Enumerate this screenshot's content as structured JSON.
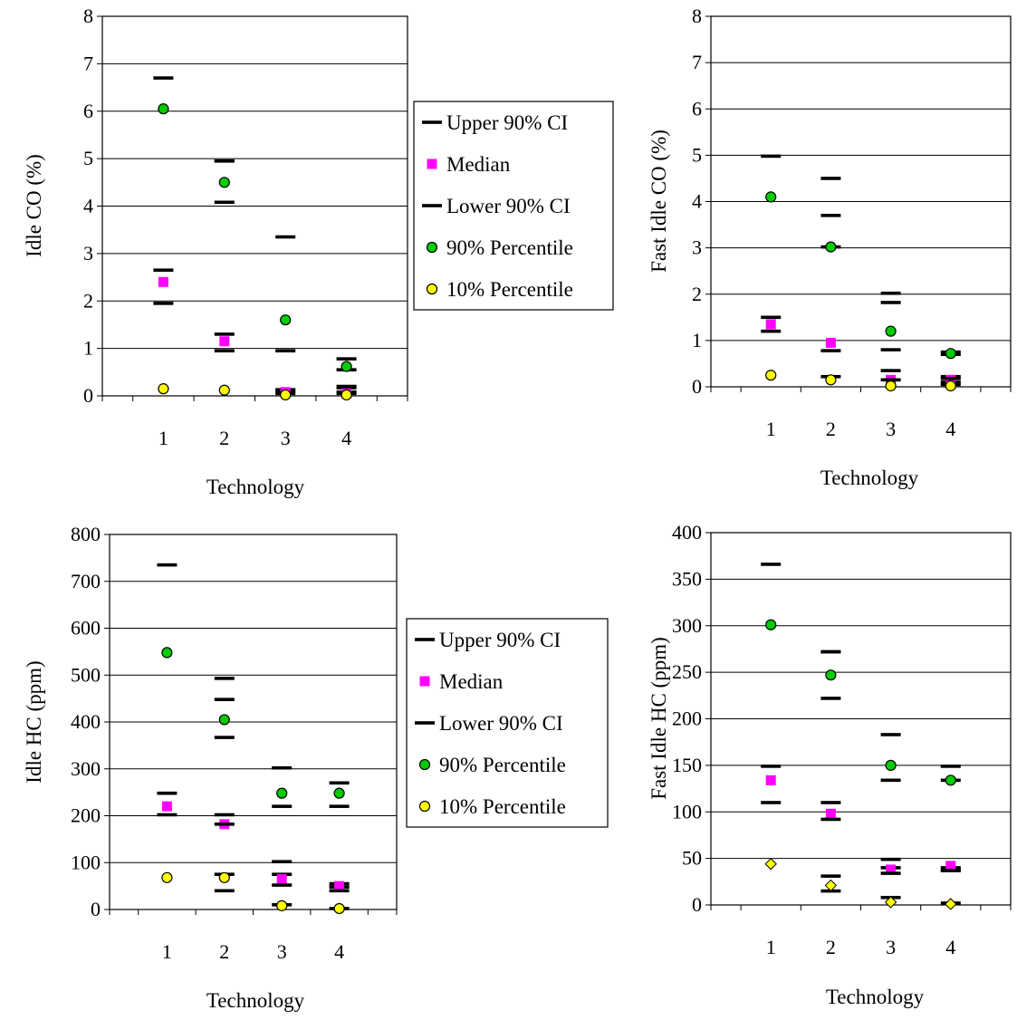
{
  "chart_data": [
    {
      "type": "scatter",
      "title": "",
      "xlabel": "Technology",
      "ylabel": "Idle CO (%)",
      "categories": [
        "1",
        "2",
        "3",
        "4"
      ],
      "ylim": [
        0,
        8
      ],
      "yticks": [
        0,
        1,
        2,
        3,
        4,
        5,
        6,
        7,
        8
      ],
      "grid": "horizontal",
      "legend_position": "right",
      "series": [
        {
          "name": "Upper 90% CI",
          "marker": "dash",
          "color": "#000000",
          "values": [
            2.65,
            1.3,
            0.1,
            0.78
          ]
        },
        {
          "name": "Median",
          "marker": "square",
          "color": "#ff00ff",
          "values": [
            2.4,
            1.15,
            0.08,
            0.05
          ]
        },
        {
          "name": "Lower 90% CI",
          "marker": "dash",
          "color": "#000000",
          "values": [
            1.95,
            0.95,
            0.05,
            0.55
          ]
        },
        {
          "name": "90% Percentile",
          "marker": "circle",
          "color": "#00cc00",
          "values": [
            6.05,
            4.5,
            1.6,
            0.62
          ]
        },
        {
          "name": "10% Percentile",
          "marker": "circle",
          "color": "#ffff00",
          "values": [
            0.15,
            0.12,
            0.02,
            0.02
          ]
        }
      ],
      "extra_dashes": [
        [
          6.7,
          4.95,
          0.13,
          0.17
        ],
        [
          4.95,
          4.08,
          3.35,
          0.95,
          0.2,
          0.05,
          0.08
        ]
      ]
    },
    {
      "type": "scatter",
      "title": "",
      "xlabel": "Technology",
      "ylabel": "Fast Idle CO (%)",
      "categories": [
        "1",
        "2",
        "3",
        "4"
      ],
      "ylim": [
        0,
        8
      ],
      "yticks": [
        0,
        1,
        2,
        3,
        4,
        5,
        6,
        7,
        8
      ],
      "grid": "horizontal",
      "legend_position": "none",
      "series": [
        {
          "name": "Upper 90% CI",
          "marker": "dash",
          "color": "#000000",
          "values": [
            1.5,
            0.78,
            0.8,
            0.75
          ]
        },
        {
          "name": "Median",
          "marker": "square",
          "color": "#ff00ff",
          "values": [
            1.35,
            0.95,
            0.15,
            0.15
          ]
        },
        {
          "name": "Lower 90% CI",
          "marker": "dash",
          "color": "#000000",
          "values": [
            1.2,
            0.22,
            0.15,
            0.18
          ]
        },
        {
          "name": "90% Percentile",
          "marker": "circle",
          "color": "#00cc00",
          "values": [
            4.1,
            3.02,
            1.2,
            0.72
          ]
        },
        {
          "name": "10% Percentile",
          "marker": "circle",
          "color": "#ffff00",
          "values": [
            0.25,
            0.15,
            0.02,
            0.02
          ]
        }
      ],
      "extra_dashes": [
        [
          4.98,
          3.7,
          0.35,
          0.22
        ],
        [
          4.5,
          3.02,
          2.02,
          1.82,
          0.1,
          0.05,
          0.7
        ]
      ]
    },
    {
      "type": "scatter",
      "title": "",
      "xlabel": "Technology",
      "ylabel": "Idle HC (ppm)",
      "categories": [
        "1",
        "2",
        "3",
        "4"
      ],
      "ylim": [
        0,
        800
      ],
      "yticks": [
        0,
        100,
        200,
        300,
        400,
        500,
        600,
        700,
        800
      ],
      "grid": "horizontal",
      "legend_position": "right",
      "series": [
        {
          "name": "Upper 90% CI",
          "marker": "dash",
          "color": "#000000",
          "values": [
            248,
            202,
            75,
            55
          ]
        },
        {
          "name": "Median",
          "marker": "square",
          "color": "#ff00ff",
          "values": [
            220,
            182,
            65,
            50
          ]
        },
        {
          "name": "Lower 90% CI",
          "marker": "dash",
          "color": "#000000",
          "values": [
            202,
            182,
            52,
            40
          ]
        },
        {
          "name": "90% Percentile",
          "marker": "circle",
          "color": "#00cc00",
          "values": [
            548,
            405,
            248,
            248
          ]
        },
        {
          "name": "10% Percentile",
          "marker": "circle",
          "color": "#ffff00",
          "values": [
            68,
            68,
            8,
            2
          ]
        }
      ],
      "extra_dashes": [
        [
          735,
          493,
          102,
          48
        ],
        [
          448,
          367,
          75,
          40,
          302,
          220,
          10,
          270,
          220,
          2
        ]
      ]
    },
    {
      "type": "scatter",
      "title": "",
      "xlabel": "Technology",
      "ylabel": "Fast Idle HC (ppm)",
      "categories": [
        "1",
        "2",
        "3",
        "4"
      ],
      "ylim": [
        0,
        400
      ],
      "yticks": [
        0,
        50,
        100,
        150,
        200,
        250,
        300,
        350,
        400
      ],
      "grid": "horizontal",
      "legend_position": "none",
      "series": [
        {
          "name": "Upper 90% CI",
          "marker": "dash",
          "color": "#000000",
          "values": [
            149,
            110,
            40,
            40
          ]
        },
        {
          "name": "Median",
          "marker": "square",
          "color": "#ff00ff",
          "values": [
            134,
            98,
            38,
            42
          ]
        },
        {
          "name": "Lower 90% CI",
          "marker": "dash",
          "color": "#000000",
          "values": [
            110,
            92,
            34,
            37
          ]
        },
        {
          "name": "90% Percentile",
          "marker": "circle",
          "color": "#00cc00",
          "values": [
            301,
            247,
            150,
            134
          ]
        },
        {
          "name": "10% Percentile",
          "marker": "diamond",
          "color": "#ffff00",
          "values": [
            44,
            21,
            3,
            1
          ]
        }
      ],
      "extra_dashes": [
        [
          366,
          272,
          49,
          37
        ],
        [
          272,
          222,
          31,
          15,
          183,
          134,
          8,
          149,
          134,
          2
        ]
      ]
    }
  ]
}
